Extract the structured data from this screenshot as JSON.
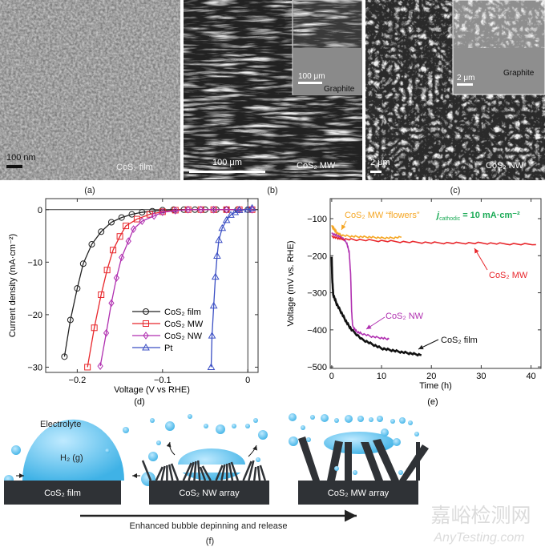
{
  "panels": {
    "a": {
      "label": "(a)",
      "scale": "100 nm",
      "name": "CoS₂ film"
    },
    "b": {
      "label": "(b)",
      "scale": "100 μm",
      "name": "CoS₂ MW",
      "inset_scale": "100 μm",
      "inset_name": "Graphite"
    },
    "c": {
      "label": "(c)",
      "scale": "2 μm",
      "name": "CoS₂ NW",
      "inset_scale": "2 μm",
      "inset_name": "Graphite"
    },
    "d": {
      "label": "(d)"
    },
    "e": {
      "label": "(e)"
    },
    "f": {
      "label": "(f)",
      "electrolyte": "Electrolyte",
      "gas": "H₂ (g)",
      "substrates": [
        "CoS₂ film",
        "CoS₂ NW array",
        "CoS₂ MW array"
      ],
      "arrow_caption": "Enhanced bubble depinning and release"
    }
  },
  "watermark": {
    "cn": "嘉峪检测网",
    "en": "AnyTesting.com"
  },
  "chart_data": [
    {
      "type": "line",
      "id": "d",
      "xlabel": "Voltage (V vs RHE)",
      "ylabel": "Current density (mA·cm⁻²)",
      "xlim": [
        -0.237,
        0.012
      ],
      "ylim": [
        -31,
        2.1
      ],
      "xticks": [
        -0.2,
        -0.1,
        0
      ],
      "xtick_labels": [
        "−0.2",
        "−0.1",
        "0"
      ],
      "yticks": [
        0,
        -10,
        -20,
        -30
      ],
      "ytick_labels": [
        "0",
        "−10",
        "−20",
        "−30"
      ],
      "legend_position": "bottom-center",
      "series": [
        {
          "name": "CoS₂ film",
          "color": "#222222",
          "marker": "circle",
          "x": [
            -0.215,
            -0.208,
            -0.2,
            -0.193,
            -0.183,
            -0.172,
            -0.16,
            -0.148,
            -0.136,
            -0.124,
            -0.112,
            -0.1,
            -0.087,
            -0.075,
            -0.062,
            -0.05,
            -0.037,
            -0.025,
            -0.012,
            0.0
          ],
          "y": [
            -28,
            -21,
            -15,
            -10.3,
            -6.6,
            -4.2,
            -2.4,
            -1.5,
            -0.9,
            -0.5,
            -0.3,
            -0.1,
            0,
            0,
            0,
            0,
            0,
            0,
            0,
            0
          ]
        },
        {
          "name": "CoS₂ MW",
          "color": "#e8262b",
          "marker": "square",
          "x": [
            -0.188,
            -0.18,
            -0.172,
            -0.165,
            -0.158,
            -0.15,
            -0.143,
            -0.13,
            -0.115,
            -0.1,
            -0.085,
            -0.07,
            -0.055,
            -0.04,
            -0.025,
            -0.01,
            0.005
          ],
          "y": [
            -30,
            -22.5,
            -16.2,
            -11.5,
            -7.7,
            -5.1,
            -3.1,
            -1.8,
            -0.9,
            -0.4,
            -0.1,
            0,
            0,
            0,
            0,
            0,
            0
          ]
        },
        {
          "name": "CoS₂ NW",
          "color": "#b02fb0",
          "marker": "diamond",
          "x": [
            -0.173,
            -0.166,
            -0.16,
            -0.154,
            -0.148,
            -0.14,
            -0.134,
            -0.124,
            -0.11,
            -0.1,
            -0.085,
            -0.07,
            -0.055,
            -0.04,
            -0.025,
            -0.01,
            0.005
          ],
          "y": [
            -29.8,
            -23.5,
            -17.8,
            -13,
            -9.1,
            -6,
            -3.7,
            -2.2,
            -1.2,
            -0.5,
            -0.2,
            0,
            0,
            0,
            0,
            0,
            0
          ]
        },
        {
          "name": "Pt",
          "color": "#3b4fc4",
          "marker": "triangle",
          "x": [
            -0.043,
            -0.042,
            -0.04,
            -0.038,
            -0.036,
            -0.034,
            -0.03,
            -0.025,
            -0.02,
            -0.015,
            -0.01,
            0.0,
            0.005
          ],
          "y": [
            -30,
            -24,
            -18.3,
            -12.8,
            -8.8,
            -5.8,
            -3.5,
            -2,
            -1,
            -0.5,
            -0.1,
            0,
            0.3
          ]
        }
      ]
    },
    {
      "type": "line",
      "id": "e",
      "xlabel": "Time (h)",
      "ylabel": "Voltage (mV vs. RHE)",
      "xlim": [
        -0.3,
        42
      ],
      "ylim": [
        -504,
        -46
      ],
      "xticks": [
        0,
        10,
        20,
        30,
        40
      ],
      "xtick_labels": [
        "0",
        "10",
        "20",
        "30",
        "40"
      ],
      "yticks": [
        -100,
        -200,
        -300,
        -400,
        -500
      ],
      "ytick_labels": [
        "−100",
        "−200",
        "−300",
        "−400",
        "−500"
      ],
      "annotation": "j_cathodic = 10 mA·cm⁻²",
      "annotation_parts": {
        "j": "j",
        "sub": "cathodic",
        "rest": " = 10 mA·cm⁻²"
      },
      "annotation_color": "#1aaa55",
      "series": [
        {
          "name": "CoS₂ MW “flowers”",
          "color": "#f5a623",
          "x": [
            0,
            0.5,
            1,
            2,
            4,
            6,
            8,
            10,
            12,
            14
          ],
          "y": [
            -120,
            -128,
            -138,
            -145,
            -148,
            -149,
            -150,
            -152,
            -152,
            -150
          ]
        },
        {
          "name": "CoS₂ MW",
          "color": "#e8262b",
          "x": [
            0,
            1,
            2,
            5,
            10,
            15,
            20,
            25,
            30,
            35,
            41
          ],
          "y": [
            -148,
            -152,
            -155,
            -157,
            -160,
            -163,
            -165,
            -166,
            -166,
            -168,
            -170
          ]
        },
        {
          "name": "CoS₂ NW",
          "color": "#b02fb0",
          "x": [
            0,
            1,
            2,
            3,
            3.5,
            3.8,
            4.0,
            4.2,
            5,
            6,
            8,
            10,
            11.5
          ],
          "y": [
            -140,
            -145,
            -150,
            -165,
            -190,
            -250,
            -350,
            -390,
            -405,
            -410,
            -418,
            -422,
            -425
          ]
        },
        {
          "name": "CoS₂ film",
          "color": "#111111",
          "x": [
            0,
            0.1,
            0.3,
            1,
            2,
            3,
            4,
            6,
            8,
            10,
            12,
            14,
            16,
            18
          ],
          "y": [
            -205,
            -260,
            -305,
            -330,
            -355,
            -380,
            -400,
            -425,
            -438,
            -450,
            -455,
            -460,
            -464,
            -468
          ]
        }
      ]
    }
  ]
}
